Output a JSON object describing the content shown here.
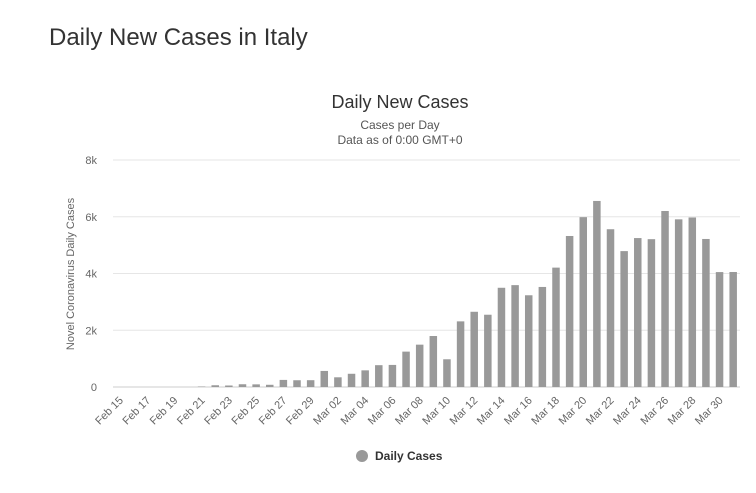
{
  "page": {
    "heading": "Daily New Cases in Italy"
  },
  "chart_data": {
    "type": "bar",
    "title": "Daily New Cases",
    "subtitle": "Cases per Day",
    "subtitle2": "Data as of 0:00 GMT+0",
    "xlabel": "",
    "ylabel": "Novel Coronavirus Daily Cases",
    "ylim": [
      0,
      8000
    ],
    "yticks": [
      0,
      2000,
      4000,
      6000,
      8000
    ],
    "ytick_labels": [
      "0",
      "2k",
      "4k",
      "6k",
      "8k"
    ],
    "grid": true,
    "legend_position": "bottom-center",
    "categories": [
      "Feb 15",
      "Feb 16",
      "Feb 17",
      "Feb 18",
      "Feb 19",
      "Feb 20",
      "Feb 21",
      "Feb 22",
      "Feb 23",
      "Feb 24",
      "Feb 25",
      "Feb 26",
      "Feb 27",
      "Feb 28",
      "Feb 29",
      "Mar 01",
      "Mar 02",
      "Mar 03",
      "Mar 04",
      "Mar 05",
      "Mar 06",
      "Mar 07",
      "Mar 08",
      "Mar 09",
      "Mar 10",
      "Mar 11",
      "Mar 12",
      "Mar 13",
      "Mar 14",
      "Mar 15",
      "Mar 16",
      "Mar 17",
      "Mar 18",
      "Mar 19",
      "Mar 20",
      "Mar 21",
      "Mar 22",
      "Mar 23",
      "Mar 24",
      "Mar 25",
      "Mar 26",
      "Mar 27",
      "Mar 28",
      "Mar 29",
      "Mar 30",
      "Mar 31"
    ],
    "xtick_labels": [
      "Feb 15",
      "",
      "Feb 17",
      "",
      "Feb 19",
      "",
      "Feb 21",
      "",
      "Feb 23",
      "",
      "Feb 25",
      "",
      "Feb 27",
      "",
      "Feb 29",
      "",
      "Mar 02",
      "",
      "Mar 04",
      "",
      "Mar 06",
      "",
      "Mar 08",
      "",
      "Mar 10",
      "",
      "Mar 12",
      "",
      "Mar 14",
      "",
      "Mar 16",
      "",
      "Mar 18",
      "",
      "Mar 20",
      "",
      "Mar 22",
      "",
      "Mar 24",
      "",
      "Mar 26",
      "",
      "Mar 28",
      "",
      "Mar 30",
      ""
    ],
    "series": [
      {
        "name": "Daily Cases",
        "color": "#999999",
        "values": [
          0,
          0,
          0,
          0,
          0,
          0,
          17,
          62,
          53,
          97,
          93,
          78,
          250,
          238,
          240,
          566,
          342,
          466,
          587,
          769,
          778,
          1247,
          1492,
          1797,
          977,
          2313,
          2651,
          2547,
          3497,
          3590,
          3233,
          3526,
          4207,
          5322,
          5986,
          6557,
          5560,
          4789,
          5249,
          5210,
          6203,
          5909,
          5974,
          5217,
          4050,
          4053
        ]
      }
    ]
  }
}
